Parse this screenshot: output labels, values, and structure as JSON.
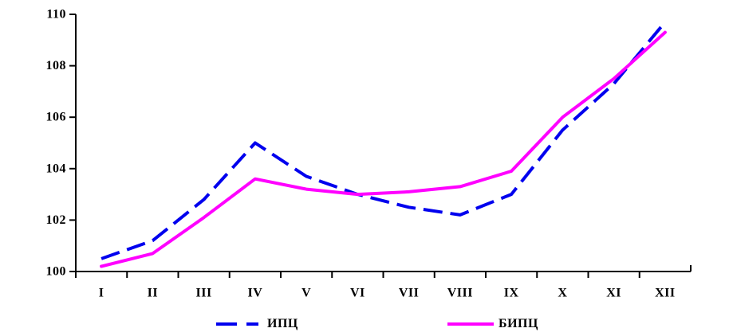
{
  "chart_data": {
    "type": "line",
    "title": "",
    "xlabel": "",
    "ylabel": "",
    "categories": [
      "I",
      "II",
      "III",
      "IV",
      "V",
      "VI",
      "VII",
      "VIII",
      "IX",
      "X",
      "XI",
      "XII"
    ],
    "series": [
      {
        "name": "ИПЦ",
        "color": "#0000ee",
        "style": "dashed",
        "values": [
          100.5,
          101.2,
          102.8,
          105.0,
          103.7,
          103.0,
          102.5,
          102.2,
          103.0,
          105.5,
          107.3,
          109.7
        ]
      },
      {
        "name": "БИПЦ",
        "color": "#ff00ff",
        "style": "solid",
        "values": [
          100.2,
          100.7,
          102.1,
          103.6,
          103.2,
          103.0,
          103.1,
          103.3,
          103.9,
          106.0,
          107.5,
          109.3
        ]
      }
    ],
    "ylim": [
      100,
      110
    ],
    "ytick_step": 2,
    "ytick_labels": [
      "100",
      "102",
      "104",
      "106",
      "108",
      "110"
    ],
    "grid": false,
    "legend_position": "bottom",
    "axis_color": "#000000",
    "label_color": "#000000",
    "background_color": "#ffffff"
  }
}
